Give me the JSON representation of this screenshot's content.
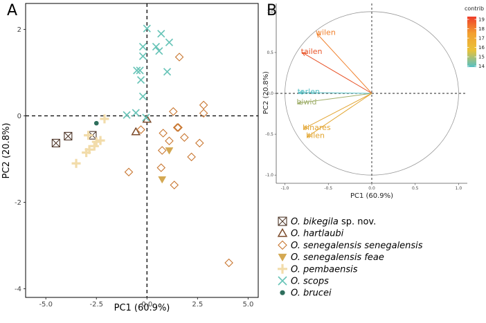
{
  "chart_data": [
    {
      "panel": "A",
      "type": "scatter",
      "xlabel": "PC1 (60.9%)",
      "ylabel": "PC2 (20.8%)",
      "xlim": [
        -6,
        5.5
      ],
      "ylim": [
        -4.2,
        2.6
      ],
      "xticks": [
        -5.0,
        -2.5,
        0.0,
        2.5,
        5.0
      ],
      "xtick_labels": [
        "-5.0",
        "-2.5",
        "0.0",
        "2.5",
        "5.0"
      ],
      "yticks": [
        -4,
        -2,
        0,
        2
      ],
      "ytick_labels": [
        "-4",
        "-2",
        "0",
        "2"
      ],
      "reference_lines": [
        "x = 0 (dashed)",
        "y = 0 (dashed)"
      ],
      "legend_position": "bottom-left, outside panel",
      "series": [
        {
          "name": "bikegila",
          "label_italic": "O. bikegila",
          "label_suffix": " sp. nov.",
          "marker": "boxed-x",
          "color": "#4a3224",
          "points": [
            [
              -4.5,
              -0.63
            ],
            [
              -3.9,
              -0.47
            ],
            [
              -2.7,
              -0.45
            ]
          ]
        },
        {
          "name": "hartlaubi",
          "label_italic": "O. hartlaubi",
          "label_suffix": "",
          "marker": "triangle-open",
          "color": "#7b4a2a",
          "points": [
            [
              -0.55,
              -0.37
            ],
            [
              0.0,
              -0.08
            ]
          ]
        },
        {
          "name": "senegalensis",
          "label_italic": "O. senegalensis senegalensis",
          "label_suffix": "",
          "marker": "diamond-open",
          "color": "#c8752e",
          "points": [
            [
              1.6,
              1.36
            ],
            [
              2.8,
              0.25
            ],
            [
              2.8,
              0.06
            ],
            [
              1.3,
              0.1
            ],
            [
              -0.3,
              -0.32
            ],
            [
              1.5,
              -0.27
            ],
            [
              1.55,
              -0.27
            ],
            [
              0.8,
              -0.4
            ],
            [
              1.85,
              -0.5
            ],
            [
              2.6,
              -0.63
            ],
            [
              1.1,
              -0.58
            ],
            [
              0.75,
              -0.8
            ],
            [
              2.2,
              -0.95
            ],
            [
              0.7,
              -1.2
            ],
            [
              -0.9,
              -1.3
            ],
            [
              1.35,
              -1.6
            ],
            [
              4.05,
              -3.4
            ]
          ]
        },
        {
          "name": "feae",
          "label_italic": "O. senegalensis feae",
          "label_suffix": "",
          "marker": "triangle-filled",
          "color": "#d4a852",
          "points": [
            [
              1.1,
              -0.8
            ],
            [
              0.75,
              -1.47
            ]
          ]
        },
        {
          "name": "pembaensis",
          "label_italic": "O. pembaensis",
          "label_suffix": "",
          "marker": "plus",
          "color": "#f2dcaa",
          "points": [
            [
              -2.1,
              -0.07
            ],
            [
              -2.9,
              -0.45
            ],
            [
              -2.3,
              -0.57
            ],
            [
              -2.5,
              -0.6
            ],
            [
              -2.6,
              -0.7
            ],
            [
              -2.85,
              -0.78
            ],
            [
              -3.0,
              -0.85
            ],
            [
              -3.5,
              -1.1
            ]
          ]
        },
        {
          "name": "scops",
          "label_italic": "O. scops",
          "label_suffix": "",
          "marker": "x",
          "color": "#68c4b8",
          "points": [
            [
              0.0,
              2.02
            ],
            [
              0.7,
              1.9
            ],
            [
              1.1,
              1.7
            ],
            [
              -0.2,
              1.6
            ],
            [
              0.45,
              1.6
            ],
            [
              0.6,
              1.5
            ],
            [
              -0.2,
              1.38
            ],
            [
              -0.5,
              1.05
            ],
            [
              -0.35,
              1.05
            ],
            [
              1.0,
              1.02
            ],
            [
              -0.3,
              0.83
            ],
            [
              -0.2,
              0.45
            ],
            [
              -0.55,
              0.07
            ],
            [
              -1.0,
              0.02
            ],
            [
              -0.05,
              -0.04
            ]
          ]
        },
        {
          "name": "brucei",
          "label_italic": "O. brucei",
          "label_suffix": "",
          "marker": "dot",
          "color": "#2e6e5c",
          "points": [
            [
              -2.5,
              -0.17
            ]
          ]
        }
      ]
    },
    {
      "panel": "B",
      "type": "biplot",
      "xlabel": "PC1 (60.9%)",
      "ylabel": "PC2 (20.8%)",
      "xlim": [
        -1.1,
        1.1
      ],
      "ylim": [
        -1.1,
        1.1
      ],
      "xticks": [
        -1.0,
        -0.5,
        0.0,
        0.5,
        1.0
      ],
      "xtick_labels": [
        "-1.0",
        "-0.5",
        "0.0",
        "0.5",
        "1.0"
      ],
      "yticks": [
        -1.0,
        -0.5,
        0.0,
        0.5,
        1.0
      ],
      "ytick_labels": [
        "-1.0",
        "-0.5",
        "0.0",
        "0.5",
        "1.0"
      ],
      "correlation_circle_radius": 1.0,
      "reference_lines": [
        "x = 0 (dashed)",
        "y = 0 (dashed)"
      ],
      "variables": [
        {
          "name": "wilen",
          "x": -0.63,
          "y": 0.73,
          "contrib": 18.0,
          "color": "#f07f2a"
        },
        {
          "name": "tailen",
          "x": -0.8,
          "y": 0.5,
          "contrib": 19.0,
          "color": "#e8552a"
        },
        {
          "name": "tarlen",
          "x": -0.84,
          "y": 0.01,
          "contrib": 14.2,
          "color": "#55bfc4"
        },
        {
          "name": "biwid",
          "x": -0.85,
          "y": -0.12,
          "contrib": 15.4,
          "color": "#9fae6a"
        },
        {
          "name": "binares",
          "x": -0.78,
          "y": -0.43,
          "contrib": 16.6,
          "color": "#e3a532"
        },
        {
          "name": "bilen",
          "x": -0.74,
          "y": -0.53,
          "contrib": 16.7,
          "color": "#e2a52f"
        }
      ],
      "colorbar": {
        "title": "contrib",
        "range": [
          13.9,
          19.3
        ],
        "ticks": [
          19,
          18,
          17,
          16,
          15,
          14
        ],
        "colors": [
          "#55bfc4",
          "#e9c23a",
          "#f3a030",
          "#ef3d2a"
        ]
      }
    }
  ],
  "panel_labels": [
    "A",
    "B"
  ]
}
